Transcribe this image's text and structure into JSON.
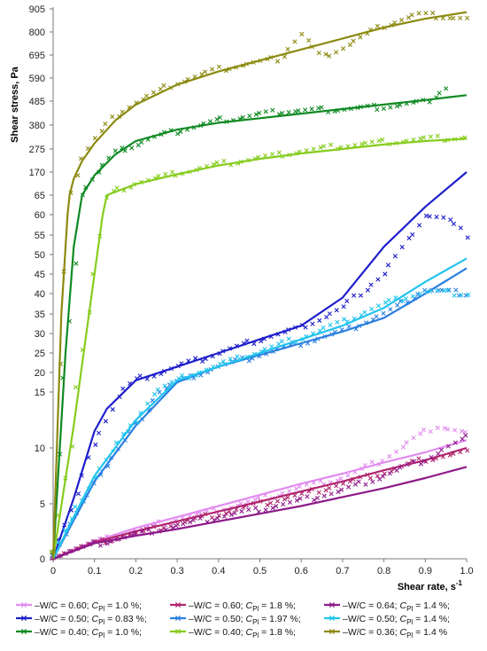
{
  "chart_data": {
    "type": "line",
    "title": "",
    "xlabel": "Shear rate, s",
    "xlabel_sup": "-1",
    "ylabel": "Shear stress, Pa",
    "x_ticks": [
      "0",
      "0.1",
      "0.2",
      "0.3",
      "0.4",
      "0.5",
      "0.6",
      "0.7",
      "0.8",
      "0.9",
      "1.0"
    ],
    "xlim": [
      0,
      1.0
    ],
    "y_tick_labels": [
      "0",
      "5",
      "10",
      "15",
      "20",
      "25",
      "30",
      "35",
      "40",
      "45",
      "50",
      "55",
      "60",
      "65",
      "170",
      "275",
      "380",
      "485",
      "590",
      "695",
      "800",
      "905"
    ],
    "y_axis_note": "piecewise y axis: 0-10 in steps of 5, 10-65 in steps of 5 (expanded), 65-905 in steps of 105",
    "ylim": [
      0,
      905
    ],
    "grid": false,
    "legend_position": "bottom",
    "legend": [
      {
        "prefix": "W/C = 0.60; ",
        "c": "C",
        "sub": "Pl",
        "suffix": " = 1.0 %;",
        "color": "#E28CF0"
      },
      {
        "prefix": "W/C = 0.60; ",
        "c": "C",
        "sub": "Pl",
        "suffix": " = 1.8 %;",
        "color": "#B0246E"
      },
      {
        "prefix": "W/C = 0.64; ",
        "c": "C",
        "sub": "Pl",
        "suffix": " = 1.4 %;",
        "color": "#8E1A8A"
      },
      {
        "prefix": "W/C = 0.50; ",
        "c": "C",
        "sub": "Pl",
        "suffix": " = 0.83 %;",
        "color": "#1E1ECC"
      },
      {
        "prefix": "W/C = 0.50; ",
        "c": "C",
        "sub": "Pl",
        "suffix": " = 1.97 %;",
        "color": "#2B7FE0"
      },
      {
        "prefix": "W/C = 0.50; ",
        "c": "C",
        "sub": "Pl",
        "suffix": " = 1.4 %;",
        "color": "#22C4EE"
      },
      {
        "prefix": "W/C = 0.40; ",
        "c": "C",
        "sub": "Pl",
        "suffix": " = 1.0 %;",
        "color": "#0E8A22"
      },
      {
        "prefix": "W/C = 0.40; ",
        "c": "C",
        "sub": "Pl",
        "suffix": " = 1.8 %;",
        "color": "#86CC1E"
      },
      {
        "prefix": "W/C = 0.36; ",
        "c": "C",
        "sub": "Pl",
        "suffix": " = 1.4 %",
        "color": "#8C8A10"
      }
    ],
    "series": [
      {
        "color": "#E28CF0",
        "fit_x": [
          0,
          0.1,
          0.2,
          0.3,
          0.4,
          0.5,
          0.6,
          0.7,
          0.8,
          0.9,
          1.0
        ],
        "fit_y": [
          0,
          1.6,
          2.8,
          3.8,
          4.8,
          5.8,
          6.8,
          7.7,
          8.7,
          9.6,
          10.7
        ],
        "pts_x": [
          0.0,
          0.1,
          0.2,
          0.3,
          0.4,
          0.5,
          0.6,
          0.7,
          0.8,
          0.88,
          0.93,
          1.0
        ],
        "pts_y": [
          0.3,
          1.5,
          2.6,
          3.6,
          4.5,
          5.4,
          6.5,
          7.3,
          9.0,
          11.0,
          12.0,
          11.3
        ]
      },
      {
        "color": "#B0246E",
        "fit_x": [
          0,
          0.1,
          0.2,
          0.3,
          0.4,
          0.5,
          0.6,
          0.7,
          0.8,
          0.9,
          1.0
        ],
        "fit_y": [
          0,
          1.5,
          2.5,
          3.4,
          4.3,
          5.2,
          6.1,
          7.0,
          8.0,
          8.9,
          10.0
        ],
        "pts_x": [
          0.0,
          0.1,
          0.2,
          0.3,
          0.4,
          0.5,
          0.6,
          0.7,
          0.8,
          0.9,
          1.0
        ],
        "pts_y": [
          0.3,
          1.4,
          2.3,
          3.2,
          4.1,
          5.0,
          5.8,
          6.8,
          7.8,
          9.0,
          9.6
        ]
      },
      {
        "color": "#8E1A8A",
        "fit_x": [
          0,
          0.1,
          0.2,
          0.3,
          0.4,
          0.5,
          0.6,
          0.7,
          0.8,
          0.9,
          1.0
        ],
        "fit_y": [
          0,
          1.4,
          2.1,
          2.7,
          3.4,
          4.1,
          4.8,
          5.6,
          6.4,
          7.3,
          8.3
        ],
        "pts_x": [
          0.0,
          0.1,
          0.2,
          0.3,
          0.4,
          0.5,
          0.6,
          0.7,
          0.8,
          0.9,
          1.0
        ],
        "pts_y": [
          0.2,
          1.3,
          2.2,
          3.0,
          3.8,
          4.5,
          5.3,
          6.2,
          7.5,
          9.0,
          10.9
        ]
      },
      {
        "color": "#1E1ECC",
        "fit_x": [
          0,
          0.05,
          0.1,
          0.13,
          0.2,
          0.3,
          0.4,
          0.5,
          0.6,
          0.7,
          0.8,
          0.9,
          1.0
        ],
        "fit_y": [
          0,
          5.5,
          11.5,
          13.5,
          18.0,
          21.5,
          25.0,
          28.5,
          32.0,
          39.0,
          52.0,
          62.0,
          170
        ],
        "pts_x": [
          0.0,
          0.05,
          0.1,
          0.15,
          0.2,
          0.3,
          0.4,
          0.5,
          0.6,
          0.7,
          0.8,
          0.9,
          0.95,
          1.0
        ],
        "pts_y": [
          0.5,
          5.0,
          10.5,
          14.0,
          18.0,
          21.5,
          25.0,
          28.5,
          31.5,
          36.5,
          45.0,
          60.0,
          59.0,
          55.0
        ]
      },
      {
        "color": "#2B7FE0",
        "fit_x": [
          0,
          0.05,
          0.1,
          0.2,
          0.3,
          0.4,
          0.5,
          0.6,
          0.7,
          0.8,
          0.9,
          1.0
        ],
        "fit_y": [
          0,
          3.5,
          7.0,
          12.0,
          17.5,
          21.5,
          24.5,
          27.5,
          30.5,
          34.0,
          40.0,
          46.5
        ],
        "pts_x": [
          0.0,
          0.05,
          0.1,
          0.2,
          0.3,
          0.4,
          0.5,
          0.6,
          0.7,
          0.8,
          0.9,
          1.0
        ],
        "pts_y": [
          0.4,
          3.5,
          7.0,
          12.0,
          17.5,
          21.5,
          24.5,
          27.5,
          30.5,
          35.0,
          41.0,
          40.0
        ]
      },
      {
        "color": "#22C4EE",
        "fit_x": [
          0,
          0.05,
          0.1,
          0.2,
          0.3,
          0.4,
          0.5,
          0.6,
          0.7,
          0.8,
          0.9,
          1.0
        ],
        "fit_y": [
          0,
          3.8,
          7.5,
          12.5,
          18.0,
          21.5,
          25.0,
          28.5,
          32.0,
          36.5,
          43.0,
          49.0
        ],
        "pts_x": [
          0.0,
          0.05,
          0.1,
          0.2,
          0.3,
          0.4,
          0.5,
          0.6,
          0.7,
          0.8,
          0.9,
          1.0
        ],
        "pts_y": [
          0.4,
          4.0,
          7.5,
          12.5,
          18.0,
          22.0,
          25.5,
          29.0,
          33.0,
          37.5,
          40.5,
          40.0
        ]
      },
      {
        "color": "#0E8A22",
        "fit_x": [
          0,
          0.03,
          0.05,
          0.07,
          0.1,
          0.15,
          0.2,
          0.3,
          0.4,
          0.5,
          0.6,
          0.7,
          0.8,
          0.9,
          1.0
        ],
        "fit_y": [
          0,
          25,
          52,
          65,
          155,
          250,
          310,
          360,
          390,
          410,
          430,
          450,
          470,
          490,
          512
        ],
        "pts_x": [
          0.0,
          0.03,
          0.06,
          0.1,
          0.15,
          0.25,
          0.4,
          0.55,
          0.7,
          0.8,
          0.9,
          0.95
        ],
        "pts_y": [
          0.5,
          20,
          55,
          150,
          260,
          330,
          400,
          440,
          450,
          460,
          480,
          545
        ]
      },
      {
        "color": "#86CC1E",
        "fit_x": [
          0,
          0.05,
          0.1,
          0.12,
          0.13,
          0.2,
          0.3,
          0.4,
          0.5,
          0.6,
          0.7,
          0.8,
          0.9,
          1.0
        ],
        "fit_y": [
          0,
          12,
          45,
          60,
          65,
          115,
          160,
          200,
          230,
          255,
          275,
          295,
          310,
          320
        ],
        "pts_x": [
          0.0,
          0.05,
          0.1,
          0.13,
          0.2,
          0.3,
          0.4,
          0.5,
          0.6,
          0.7,
          0.8,
          0.9,
          1.0
        ],
        "pts_y": [
          0.5,
          12,
          45,
          65,
          120,
          165,
          205,
          235,
          265,
          290,
          305,
          320,
          325
        ]
      },
      {
        "color": "#8C8A10",
        "fit_x": [
          0,
          0.02,
          0.035,
          0.04,
          0.05,
          0.07,
          0.1,
          0.15,
          0.2,
          0.3,
          0.4,
          0.5,
          0.6,
          0.7,
          0.8,
          0.9,
          1.0
        ],
        "fit_y": [
          0,
          35,
          60,
          68,
          140,
          220,
          300,
          400,
          470,
          560,
          620,
          670,
          720,
          770,
          820,
          860,
          890
        ],
        "pts_x": [
          0.0,
          0.02,
          0.04,
          0.07,
          0.1,
          0.15,
          0.2,
          0.3,
          0.4,
          0.55,
          0.6,
          0.65,
          0.8,
          0.88,
          0.95,
          1.0
        ],
        "pts_y": [
          0.5,
          30,
          68,
          230,
          320,
          420,
          480,
          570,
          630,
          680,
          790,
          680,
          830,
          880,
          870,
          860
        ]
      }
    ]
  }
}
